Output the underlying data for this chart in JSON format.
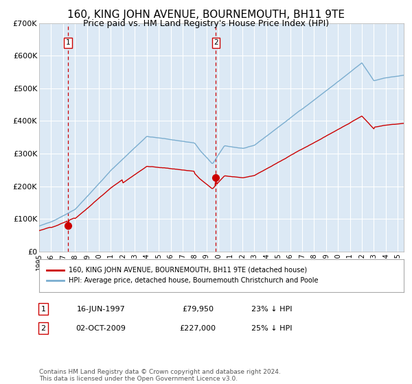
{
  "title": "160, KING JOHN AVENUE, BOURNEMOUTH, BH11 9TE",
  "subtitle": "Price paid vs. HM Land Registry's House Price Index (HPI)",
  "title_fontsize": 11,
  "subtitle_fontsize": 9,
  "bg_color": "#dce9f5",
  "grid_color": "#ffffff",
  "red_line_color": "#cc0000",
  "blue_line_color": "#7aadcf",
  "marker1_value": 79950,
  "marker2_value": 227000,
  "marker1_year": 1997.46,
  "marker2_year": 2009.75,
  "purchase1_label": "16-JUN-1997",
  "purchase1_price": "£79,950",
  "purchase1_hpi": "23% ↓ HPI",
  "purchase2_label": "02-OCT-2009",
  "purchase2_price": "£227,000",
  "purchase2_hpi": "25% ↓ HPI",
  "legend_line1": "160, KING JOHN AVENUE, BOURNEMOUTH, BH11 9TE (detached house)",
  "legend_line2": "HPI: Average price, detached house, Bournemouth Christchurch and Poole",
  "footer": "Contains HM Land Registry data © Crown copyright and database right 2024.\nThis data is licensed under the Open Government Licence v3.0.",
  "ylim": [
    0,
    700000
  ],
  "yticks": [
    0,
    100000,
    200000,
    300000,
    400000,
    500000,
    600000,
    700000
  ],
  "ytick_labels": [
    "£0",
    "£100K",
    "£200K",
    "£300K",
    "£400K",
    "£500K",
    "£600K",
    "£700K"
  ],
  "xlim_start": 1995.0,
  "xlim_end": 2025.5
}
